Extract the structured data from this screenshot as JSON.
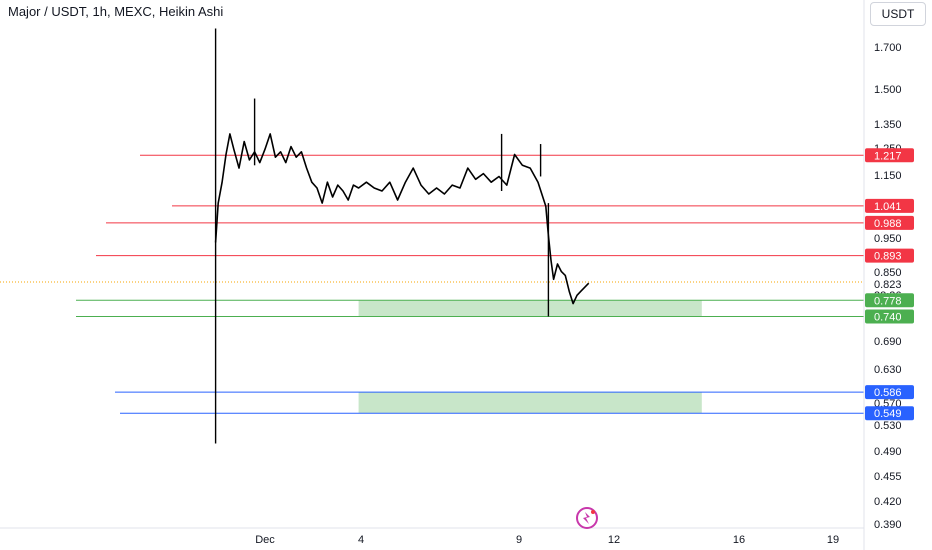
{
  "header": {
    "title": "Major / USDT, 1h, MEXC, Heikin Ashi",
    "currency_label": "USDT"
  },
  "colors": {
    "resistance": "#f23645",
    "support_green": "#4caf50",
    "support_blue": "#2962ff",
    "zone_fill": "#c8e6c9",
    "candle": "#000000",
    "axis_text": "#131722",
    "current_price_line": "#f7a600"
  },
  "watermark_icon": "tradingview-logo-icon",
  "chart_data": {
    "type": "candlestick",
    "title": "Major / USDT, 1h, MEXC, Heikin Ashi",
    "xlabel": "",
    "ylabel": "",
    "x_tick_labels": [
      "Dec",
      "4",
      "9",
      "12",
      "16",
      "19"
    ],
    "y_tick_labels": [
      "1.700",
      "1.500",
      "1.350",
      "1.250",
      "1.150",
      "0.950",
      "0.850",
      "0.823",
      "38:36",
      "0.690",
      "0.630",
      "0.570",
      "0.530",
      "0.490",
      "0.455",
      "0.420",
      "0.390"
    ],
    "price_levels": [
      {
        "label": "1.217",
        "value": 1.217,
        "color": "#f23645"
      },
      {
        "label": "1.041",
        "value": 1.041,
        "color": "#f23645"
      },
      {
        "label": "0.988",
        "value": 0.988,
        "color": "#f23645"
      },
      {
        "label": "0.893",
        "value": 0.893,
        "color": "#f23645"
      },
      {
        "label": "0.778",
        "value": 0.778,
        "color": "#4caf50"
      },
      {
        "label": "0.740",
        "value": 0.74,
        "color": "#4caf50"
      },
      {
        "label": "0.586",
        "value": 0.586,
        "color": "#2962ff"
      },
      {
        "label": "0.549",
        "value": 0.549,
        "color": "#2962ff"
      }
    ],
    "zones": [
      {
        "from_date": "Dec 4",
        "to_date": "Dec 15",
        "low": 0.74,
        "high": 0.778
      },
      {
        "from_date": "Dec 4",
        "to_date": "Dec 15",
        "low": 0.549,
        "high": 0.586
      }
    ],
    "current_price": 0.823,
    "countdown": "38:36",
    "y_scale": "log",
    "ylim": [
      0.38,
      1.85
    ],
    "grid": false,
    "series_points": [
      [
        "Nov 29 10:00",
        0.93
      ],
      [
        "Nov 29 12:00",
        1.05
      ],
      [
        "Nov 29 15:00",
        1.12
      ],
      [
        "Nov 29 18:00",
        1.22
      ],
      [
        "Nov 29 21:00",
        1.3
      ],
      [
        "Nov 30 00:00",
        1.24
      ],
      [
        "Nov 30 04:00",
        1.17
      ],
      [
        "Nov 30 08:00",
        1.27
      ],
      [
        "Nov 30 12:00",
        1.2
      ],
      [
        "Nov 30 16:00",
        1.23
      ],
      [
        "Nov 30 20:00",
        1.19
      ],
      [
        "Dec 1 00:00",
        1.24
      ],
      [
        "Dec 1 04:00",
        1.3
      ],
      [
        "Dec 1 08:00",
        1.21
      ],
      [
        "Dec 1 12:00",
        1.23
      ],
      [
        "Dec 1 16:00",
        1.19
      ],
      [
        "Dec 1 20:00",
        1.25
      ],
      [
        "Dec 2 00:00",
        1.21
      ],
      [
        "Dec 2 04:00",
        1.23
      ],
      [
        "Dec 2 08:00",
        1.17
      ],
      [
        "Dec 2 12:00",
        1.12
      ],
      [
        "Dec 2 16:00",
        1.1
      ],
      [
        "Dec 2 20:00",
        1.05
      ],
      [
        "Dec 3 00:00",
        1.12
      ],
      [
        "Dec 3 04:00",
        1.07
      ],
      [
        "Dec 3 08:00",
        1.11
      ],
      [
        "Dec 3 12:00",
        1.09
      ],
      [
        "Dec 3 16:00",
        1.06
      ],
      [
        "Dec 3 20:00",
        1.11
      ],
      [
        "Dec 4 00:00",
        1.1
      ],
      [
        "Dec 4 06:00",
        1.12
      ],
      [
        "Dec 4 12:00",
        1.1
      ],
      [
        "Dec 4 18:00",
        1.09
      ],
      [
        "Dec 5 00:00",
        1.12
      ],
      [
        "Dec 5 06:00",
        1.06
      ],
      [
        "Dec 5 12:00",
        1.12
      ],
      [
        "Dec 5 18:00",
        1.17
      ],
      [
        "Dec 6 00:00",
        1.11
      ],
      [
        "Dec 6 06:00",
        1.08
      ],
      [
        "Dec 6 12:00",
        1.1
      ],
      [
        "Dec 6 18:00",
        1.08
      ],
      [
        "Dec 7 00:00",
        1.11
      ],
      [
        "Dec 7 06:00",
        1.1
      ],
      [
        "Dec 7 12:00",
        1.17
      ],
      [
        "Dec 7 18:00",
        1.13
      ],
      [
        "Dec 8 00:00",
        1.15
      ],
      [
        "Dec 8 06:00",
        1.12
      ],
      [
        "Dec 8 12:00",
        1.14
      ],
      [
        "Dec 8 18:00",
        1.11
      ],
      [
        "Dec 9 00:00",
        1.22
      ],
      [
        "Dec 9 06:00",
        1.18
      ],
      [
        "Dec 9 12:00",
        1.17
      ],
      [
        "Dec 9 18:00",
        1.12
      ],
      [
        "Dec 10 00:00",
        1.04
      ],
      [
        "Dec 10 02:00",
        0.95
      ],
      [
        "Dec 10 04:00",
        0.88
      ],
      [
        "Dec 10 06:00",
        0.83
      ],
      [
        "Dec 10 09:00",
        0.87
      ],
      [
        "Dec 10 12:00",
        0.85
      ],
      [
        "Dec 10 15:00",
        0.84
      ],
      [
        "Dec 10 18:00",
        0.8
      ],
      [
        "Dec 10 21:00",
        0.77
      ],
      [
        "Dec 11 00:00",
        0.79
      ],
      [
        "Dec 11 03:00",
        0.8
      ],
      [
        "Dec 11 06:00",
        0.81
      ],
      [
        "Dec 11 09:00",
        0.82
      ]
    ],
    "wicks": [
      {
        "date": "Nov 29 10:00",
        "low": 0.5,
        "high": 1.8
      },
      {
        "date": "Nov 30 16:00",
        "low": 1.18,
        "high": 1.45
      },
      {
        "date": "Dec 8 14:00",
        "low": 1.09,
        "high": 1.3
      },
      {
        "date": "Dec 9 20:00",
        "low": 1.14,
        "high": 1.26
      },
      {
        "date": "Dec 10 02:00",
        "low": 0.74,
        "high": 1.05
      }
    ]
  }
}
